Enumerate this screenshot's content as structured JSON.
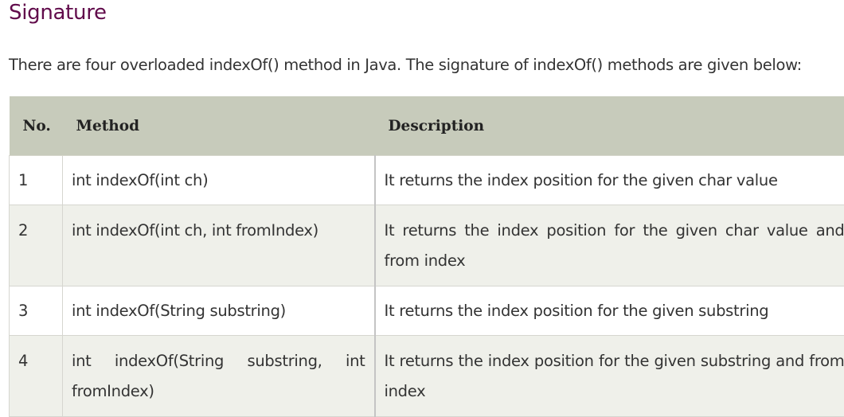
{
  "heading": "Signature",
  "intro": "There are four overloaded indexOf() method in Java. The signature of indexOf() methods are given below:",
  "table": {
    "headers": {
      "no": "No.",
      "method": "Method",
      "description": "Description"
    },
    "rows": [
      {
        "no": "1",
        "method": "int indexOf(int ch)",
        "description": "It returns the index position for the given char value"
      },
      {
        "no": "2",
        "method": "int indexOf(int ch, int fromIndex)",
        "description": "It returns the index position for the given char value and from index"
      },
      {
        "no": "3",
        "method": "int indexOf(String substring)",
        "description": "It returns the index position for the given substring"
      },
      {
        "no": "4",
        "method": "int indexOf(String substring, int fromIndex)",
        "description": "It returns the index position for the given substring and from index"
      }
    ]
  },
  "colors": {
    "heading": "#610b4b",
    "header_bg": "#c7cbbb",
    "even_row_bg": "#eff0ea"
  }
}
